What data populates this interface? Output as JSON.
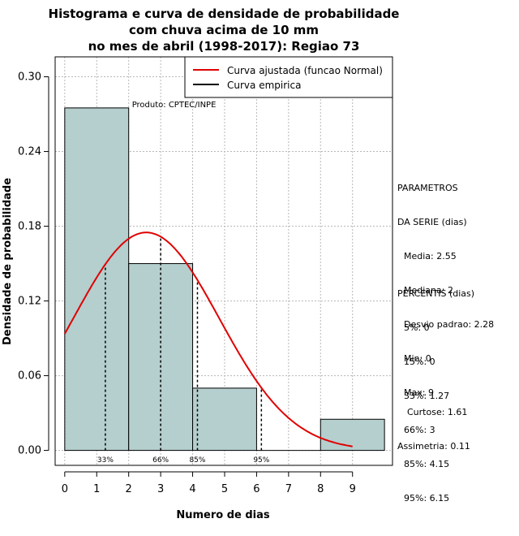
{
  "chart_data": {
    "type": "histogram",
    "title_lines": [
      "Histograma e curva de densidade de probabilidade",
      "com chuva acima de 10 mm",
      "no mes de abril (1998-2017): Regiao 73"
    ],
    "xlabel": "Numero de dias",
    "ylabel": "Densidade de probabilidade",
    "xlim": [
      -0.3,
      10.25
    ],
    "ylim": [
      -0.012,
      0.316
    ],
    "x_ticks": [
      0,
      1,
      2,
      3,
      4,
      5,
      6,
      7,
      8,
      9
    ],
    "y_ticks": [
      "0.00",
      "0.06",
      "0.12",
      "0.18",
      "0.24",
      "0.30"
    ],
    "bars": [
      {
        "x0": 0,
        "x1": 2,
        "density": 0.275
      },
      {
        "x0": 2,
        "x1": 4,
        "density": 0.15
      },
      {
        "x0": 4,
        "x1": 6,
        "density": 0.05
      },
      {
        "x0": 6,
        "x1": 8,
        "density": 0.0
      },
      {
        "x0": 8,
        "x1": 10,
        "density": 0.025
      }
    ],
    "bar_color": "#b5cece",
    "fitted_curve": {
      "name": "Curva ajustada (funcao Normal)",
      "mean": 2.55,
      "sd": 2.28,
      "x_range": [
        0,
        9
      ],
      "color": "#e00000"
    },
    "empirical_curve": {
      "name": "Curva empirica",
      "color": "#000000"
    },
    "legend_position": "top-right",
    "percentile_marks": [
      {
        "label": "33%",
        "x": 1.27
      },
      {
        "label": "66%",
        "x": 3
      },
      {
        "label": "85%",
        "x": 4.15
      },
      {
        "label": "95%",
        "x": 6.15
      }
    ],
    "annotation": "Produto: CPTEC/INPE"
  },
  "side_panel": {
    "parametros_title_1": "PARAMETROS",
    "parametros_title_2": "DA SERIE (dias)",
    "media": "Media: 2.55",
    "mediana": "Mediana: 2",
    "desvio": "Desvio padrao: 2.28",
    "min": "Min: 0",
    "max": "Max: 9",
    "percentis_title": "PERCENTIS (dias)",
    "p5": "5%: 0",
    "p15": "15%: 0",
    "p33": "33%: 1.27",
    "p66": "66%: 3",
    "p85": "85%: 4.15",
    "p95": "95%: 6.15",
    "curtose": "Curtose: 1.61",
    "assimetria": "Assimetria: 0.11"
  }
}
